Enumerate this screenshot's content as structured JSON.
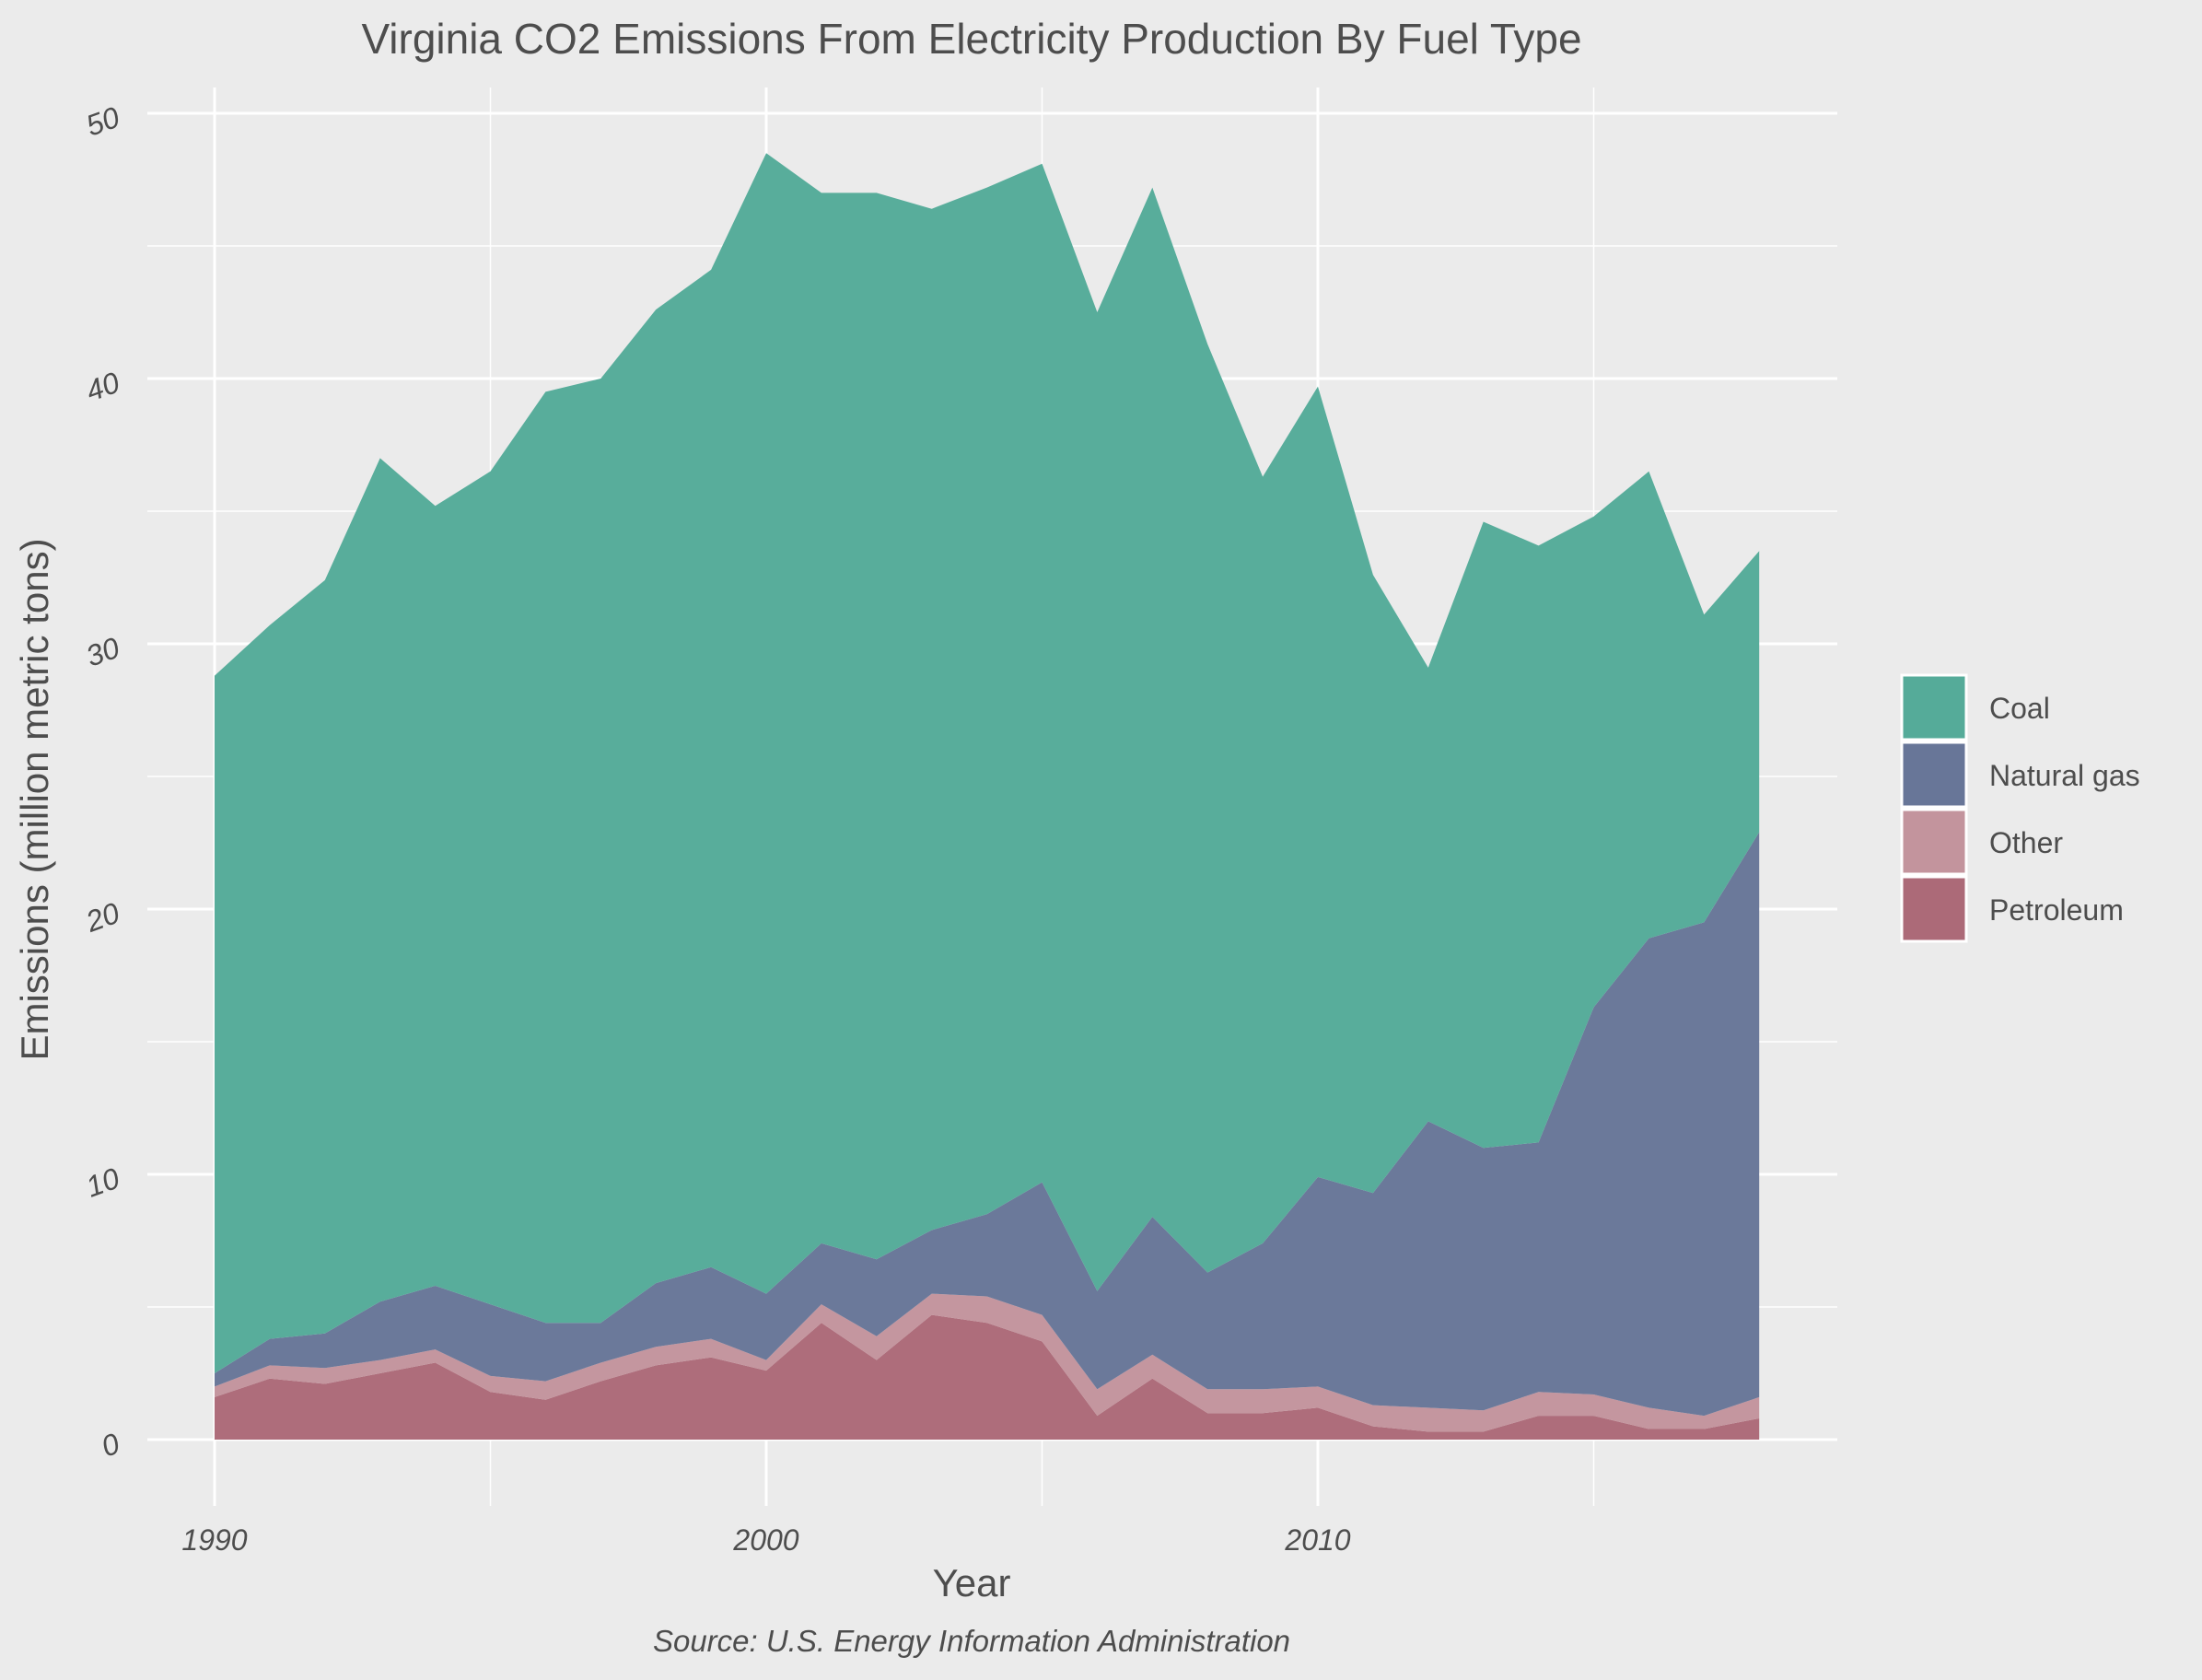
{
  "chart_data": {
    "type": "area",
    "stacked": true,
    "title": "Virginia CO2 Emissions From Electricity Production By Fuel Type",
    "xlabel": "Year",
    "ylabel": "Emissions (million metric tons)",
    "caption": "Source: U.S. Energy Information Administration",
    "xlim": [
      1990,
      2018
    ],
    "ylim": [
      0,
      50
    ],
    "x_ticks": [
      "1990",
      "2000",
      "2010"
    ],
    "y_ticks": [
      "0",
      "10",
      "20",
      "30",
      "40",
      "50"
    ],
    "grid": true,
    "legend_position": "right",
    "x": [
      1990,
      1991,
      1992,
      1993,
      1994,
      1995,
      1996,
      1997,
      1998,
      1999,
      2000,
      2001,
      2002,
      2003,
      2004,
      2005,
      2006,
      2007,
      2008,
      2009,
      2010,
      2011,
      2012,
      2013,
      2014,
      2015,
      2016,
      2017,
      2018
    ],
    "series": [
      {
        "name": "Petroleum",
        "color": "#ac6a78",
        "values": [
          1.6,
          2.3,
          2.1,
          2.5,
          2.9,
          1.8,
          1.5,
          2.2,
          2.8,
          3.1,
          2.6,
          4.4,
          3.0,
          4.7,
          4.4,
          3.7,
          0.9,
          2.3,
          1.0,
          1.0,
          1.2,
          0.5,
          0.3,
          0.3,
          0.9,
          0.9,
          0.4,
          0.4,
          0.8
        ]
      },
      {
        "name": "Other",
        "color": "#c3949d",
        "values": [
          0.4,
          0.5,
          0.6,
          0.5,
          0.5,
          0.6,
          0.7,
          0.7,
          0.7,
          0.7,
          0.4,
          0.7,
          0.9,
          0.8,
          1.0,
          1.0,
          1.0,
          0.9,
          0.9,
          0.9,
          0.8,
          0.8,
          0.9,
          0.8,
          0.9,
          0.8,
          0.8,
          0.5,
          0.8
        ]
      },
      {
        "name": "Natural gas",
        "color": "#687698",
        "values": [
          0.5,
          1.0,
          1.3,
          2.2,
          2.4,
          2.7,
          2.2,
          1.5,
          2.4,
          2.7,
          2.5,
          2.3,
          2.9,
          2.4,
          3.1,
          5.0,
          3.7,
          5.2,
          4.4,
          5.5,
          7.9,
          8.0,
          10.8,
          9.9,
          9.4,
          14.6,
          17.7,
          18.6,
          21.3
        ]
      },
      {
        "name": "Coal",
        "color": "#55ab99",
        "values": [
          26.3,
          26.9,
          28.4,
          31.8,
          29.4,
          31.4,
          35.1,
          35.6,
          36.7,
          37.6,
          43.0,
          39.6,
          40.2,
          38.5,
          38.7,
          38.4,
          36.9,
          38.8,
          35.0,
          28.9,
          29.8,
          23.3,
          17.1,
          23.6,
          22.5,
          18.5,
          17.6,
          11.6,
          10.6
        ]
      }
    ],
    "legend_order": [
      "Coal",
      "Natural gas",
      "Other",
      "Petroleum"
    ]
  }
}
